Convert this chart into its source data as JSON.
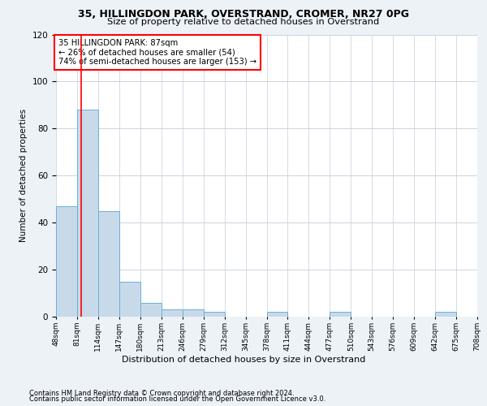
{
  "title1": "35, HILLINGDON PARK, OVERSTRAND, CROMER, NR27 0PG",
  "title2": "Size of property relative to detached houses in Overstrand",
  "xlabel": "Distribution of detached houses by size in Overstrand",
  "ylabel": "Number of detached properties",
  "bin_edges": [
    48,
    81,
    114,
    147,
    180,
    213,
    246,
    279,
    312,
    345,
    378,
    411,
    444,
    477,
    510,
    543,
    576,
    609,
    642,
    675,
    708
  ],
  "bar_values": [
    47,
    88,
    45,
    15,
    6,
    3,
    3,
    2,
    0,
    0,
    2,
    0,
    0,
    2,
    0,
    0,
    0,
    0,
    2,
    0
  ],
  "bar_color": "#c8daea",
  "bar_edge_color": "#6aafd6",
  "property_size": 87,
  "annotation_title": "35 HILLINGDON PARK: 87sqm",
  "annotation_line1": "← 26% of detached houses are smaller (54)",
  "annotation_line2": "74% of semi-detached houses are larger (153) →",
  "annotation_box_color": "white",
  "annotation_box_edge": "red",
  "vline_color": "red",
  "ylim": [
    0,
    120
  ],
  "yticks": [
    0,
    20,
    40,
    60,
    80,
    100,
    120
  ],
  "footer1": "Contains HM Land Registry data © Crown copyright and database right 2024.",
  "footer2": "Contains public sector information licensed under the Open Government Licence v3.0.",
  "bg_color": "#edf2f7",
  "plot_bg_color": "white",
  "grid_color": "#c5cdd8"
}
